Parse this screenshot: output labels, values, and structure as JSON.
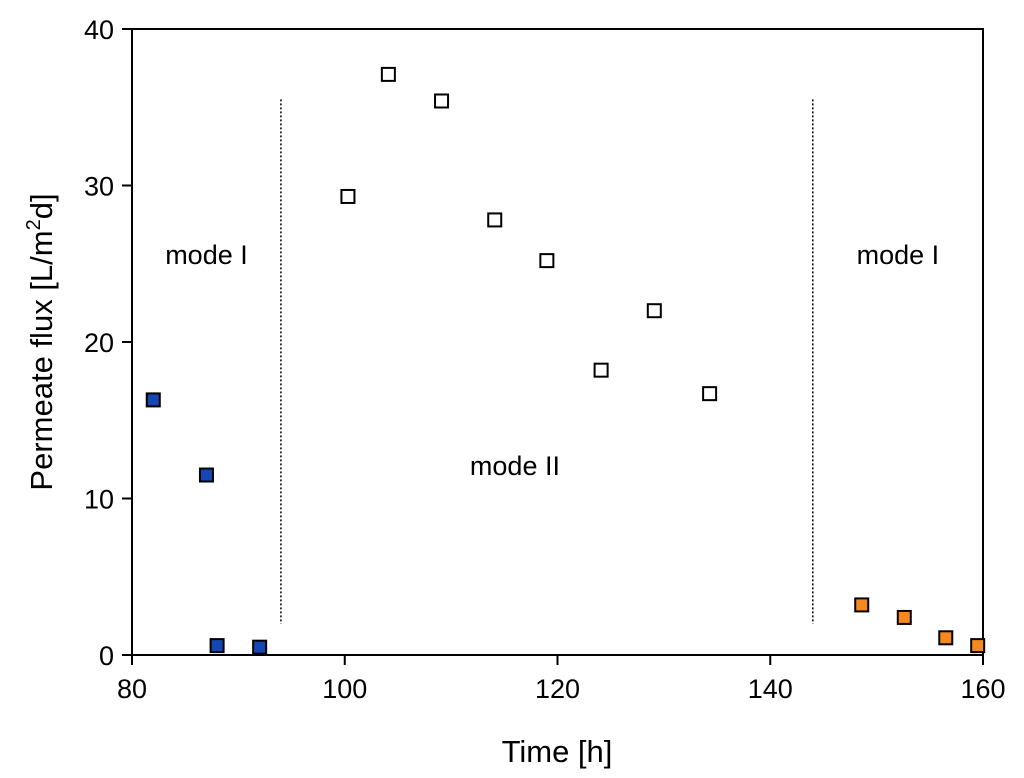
{
  "chart_data": {
    "type": "scatter",
    "xlabel": "Time [h]",
    "ylabel": {
      "prefix": "Permeate flux [L/m",
      "superscript": "2",
      "suffix": "d]"
    },
    "xlim": [
      80,
      160
    ],
    "ylim": [
      0,
      40
    ],
    "xticks": [
      80,
      100,
      120,
      140,
      160
    ],
    "yticks": [
      0,
      10,
      20,
      30,
      40
    ],
    "grid": false,
    "mode_boundaries": [
      94,
      144
    ],
    "annotations": [
      {
        "text": "mode I",
        "x": 87,
        "y": 25
      },
      {
        "text": "mode II",
        "x": 116,
        "y": 11.5
      },
      {
        "text": "mode I",
        "x": 152,
        "y": 25
      }
    ],
    "series": [
      {
        "color": "#1446b4",
        "fill": "filled",
        "points": [
          [
            82,
            16.3
          ],
          [
            87,
            11.5
          ],
          [
            88,
            0.6
          ],
          [
            92,
            0.5
          ]
        ]
      },
      {
        "color": "#ffffff",
        "fill": "open",
        "points": [
          [
            100.3,
            29.3
          ],
          [
            104.1,
            37.1
          ],
          [
            109.1,
            35.4
          ],
          [
            114.1,
            27.8
          ],
          [
            119,
            25.2
          ],
          [
            124.1,
            18.2
          ],
          [
            129.1,
            22
          ],
          [
            134.3,
            16.7
          ]
        ]
      },
      {
        "color": "#f5891f",
        "fill": "filled",
        "points": [
          [
            148.6,
            3.2
          ],
          [
            152.6,
            2.4
          ],
          [
            156.5,
            1.1
          ],
          [
            159.5,
            0.6
          ]
        ]
      }
    ]
  }
}
